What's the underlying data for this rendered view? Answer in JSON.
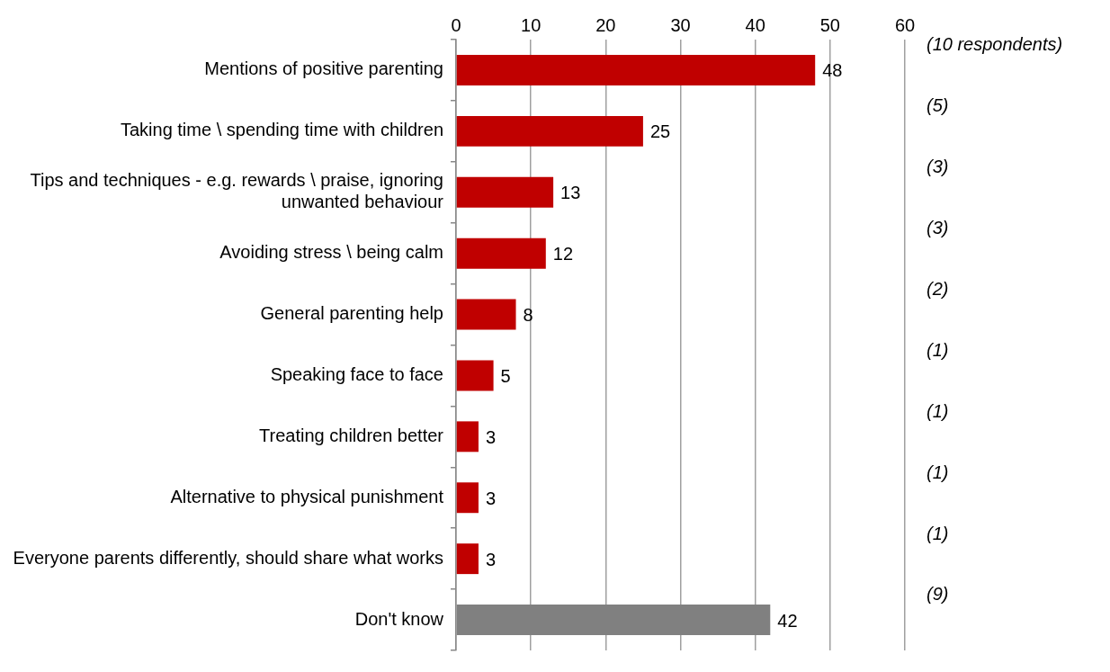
{
  "chart_data": {
    "type": "bar",
    "orientation": "horizontal",
    "categories": [
      "Mentions of positive parenting",
      "Taking time \\ spending time with children",
      "Tips and techniques - e.g. rewards \\ praise, ignoring unwanted behaviour",
      "Avoiding stress \\ being calm",
      "General parenting help",
      "Speaking face to face",
      "Treating children better",
      "Alternative to physical punishment",
      "Everyone parents differently, should share what works",
      "Don't know"
    ],
    "values": [
      48,
      25,
      13,
      12,
      8,
      5,
      3,
      3,
      3,
      42
    ],
    "colors": [
      "#c00000",
      "#c00000",
      "#c00000",
      "#c00000",
      "#c00000",
      "#c00000",
      "#c00000",
      "#c00000",
      "#c00000",
      "#808080"
    ],
    "xlim": [
      0,
      60
    ],
    "xticks": [
      0,
      10,
      20,
      30,
      40,
      50,
      60
    ],
    "grid": "x",
    "data_labels": true,
    "legend": false,
    "annotations": [
      "(10 respondents)",
      "(5)",
      "(3)",
      "(3)",
      "(2)",
      "(1)",
      "(1)",
      "(1)",
      "(1)",
      "(9)"
    ]
  }
}
